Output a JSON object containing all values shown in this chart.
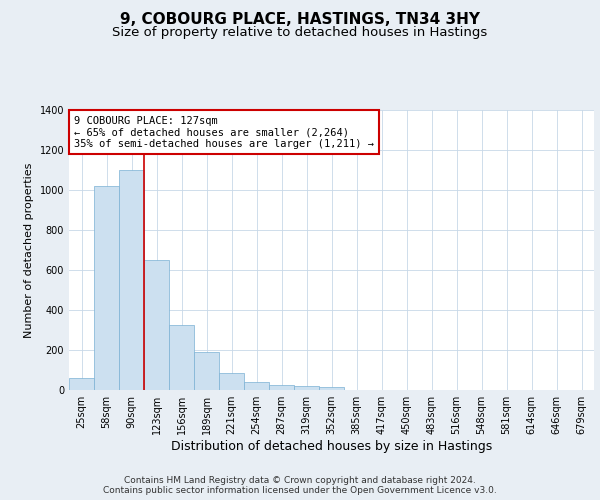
{
  "title": "9, COBOURG PLACE, HASTINGS, TN34 3HY",
  "subtitle": "Size of property relative to detached houses in Hastings",
  "xlabel": "Distribution of detached houses by size in Hastings",
  "ylabel": "Number of detached properties",
  "categories": [
    "25sqm",
    "58sqm",
    "90sqm",
    "123sqm",
    "156sqm",
    "189sqm",
    "221sqm",
    "254sqm",
    "287sqm",
    "319sqm",
    "352sqm",
    "385sqm",
    "417sqm",
    "450sqm",
    "483sqm",
    "516sqm",
    "548sqm",
    "581sqm",
    "614sqm",
    "646sqm",
    "679sqm"
  ],
  "values": [
    60,
    1020,
    1100,
    650,
    325,
    190,
    85,
    40,
    25,
    20,
    15,
    0,
    0,
    0,
    0,
    0,
    0,
    0,
    0,
    0,
    0
  ],
  "bar_color": "#cce0f0",
  "bar_edge_color": "#7ab0d4",
  "vline_color": "#cc0000",
  "annotation_line1": "9 COBOURG PLACE: 127sqm",
  "annotation_line2": "← 65% of detached houses are smaller (2,264)",
  "annotation_line3": "35% of semi-detached houses are larger (1,211) →",
  "annotation_box_color": "#ffffff",
  "annotation_box_edge": "#cc0000",
  "ylim": [
    0,
    1400
  ],
  "yticks": [
    0,
    200,
    400,
    600,
    800,
    1000,
    1200,
    1400
  ],
  "background_color": "#e8eef4",
  "plot_background": "#ffffff",
  "grid_color": "#c8d8e8",
  "footer_line1": "Contains HM Land Registry data © Crown copyright and database right 2024.",
  "footer_line2": "Contains public sector information licensed under the Open Government Licence v3.0.",
  "title_fontsize": 11,
  "subtitle_fontsize": 9.5,
  "xlabel_fontsize": 9,
  "ylabel_fontsize": 8,
  "tick_fontsize": 7,
  "annotation_fontsize": 7.5,
  "footer_fontsize": 6.5
}
